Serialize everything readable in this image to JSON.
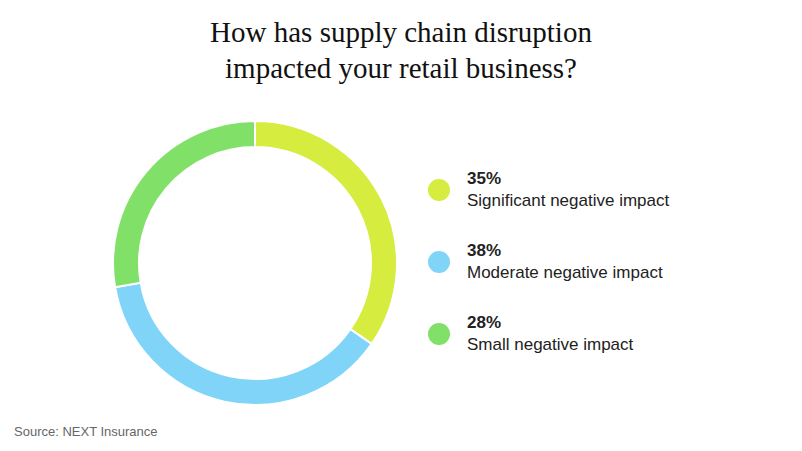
{
  "chart_data": {
    "type": "pie",
    "title": "How has supply chain disruption impacted your retail business?",
    "categories": [
      "Significant negative impact",
      "Moderate negative impact",
      "Small negative impact"
    ],
    "values": [
      35,
      38,
      28
    ],
    "value_labels": [
      "35%",
      "38%",
      "28%"
    ],
    "colors": [
      "#d6ec3e",
      "#7fd4f8",
      "#80e068"
    ],
    "legend": "right",
    "source": "Source: NEXT Insurance"
  }
}
